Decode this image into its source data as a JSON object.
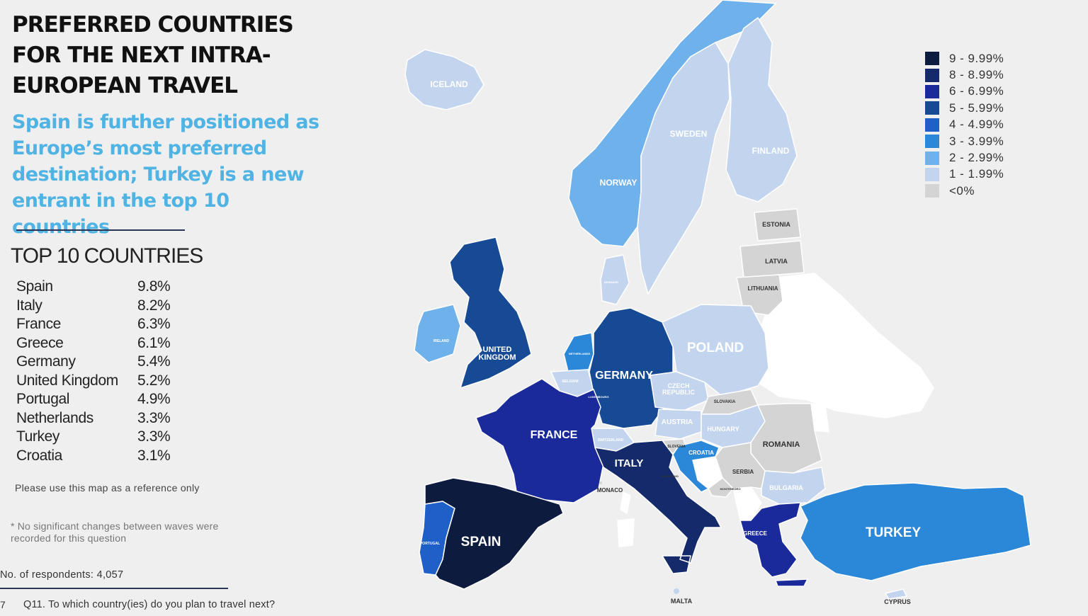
{
  "title": "PREFERRED COUNTRIES FOR THE NEXT INTRA-EUROPEAN TRAVEL",
  "subtitle": "Spain is further positioned as Europe’s most preferred destination; Turkey is a new entrant in the top 10 countries",
  "top10": {
    "heading": "TOP 10 COUNTRIES",
    "rows": [
      {
        "country": "Spain",
        "value": "9.8%"
      },
      {
        "country": "Italy",
        "value": "8.2%"
      },
      {
        "country": "France",
        "value": "6.3%"
      },
      {
        "country": "Greece",
        "value": "6.1%"
      },
      {
        "country": "Germany",
        "value": "5.4%"
      },
      {
        "country": "United Kingdom",
        "value": "5.2%"
      },
      {
        "country": "Portugal",
        "value": "4.9%"
      },
      {
        "country": "Netherlands",
        "value": "3.3%"
      },
      {
        "country": "Turkey",
        "value": "3.3%"
      },
      {
        "country": "Croatia",
        "value": "3.1%"
      }
    ]
  },
  "notes": {
    "reference": "Please use this map as a reference only",
    "changes": "* No significant changes between waves were recorded for this question",
    "respondents": "No. of respondents: 4,057",
    "page_number": "7",
    "question": "Q11. To which country(ies) do you plan to travel next?"
  },
  "legend": [
    {
      "label": "9 - 9.99%",
      "color": "#0d1b3e"
    },
    {
      "label": "8 - 8.99%",
      "color": "#152a6b"
    },
    {
      "label": "6 - 6.99%",
      "color": "#1a2a9a"
    },
    {
      "label": "5 - 5.99%",
      "color": "#164a94"
    },
    {
      "label": "4 - 4.99%",
      "color": "#1f5fc8"
    },
    {
      "label": "3 - 3.99%",
      "color": "#2b87d8"
    },
    {
      "label": "2 - 2.99%",
      "color": "#6fb1ea"
    },
    {
      "label": "1 - 1.99%",
      "color": "#c3d5ee"
    },
    {
      "label": "<0%",
      "color": "#d4d4d4"
    }
  ],
  "map_labels": {
    "iceland": "ICELAND",
    "norway": "NORWAY",
    "sweden": "SWEDEN",
    "finland": "FINLAND",
    "estonia": "ESTONIA",
    "latvia": "LATVIA",
    "lithuania": "LITHUANIA",
    "denmark": "DENMARK",
    "ireland": "IRELAND",
    "uk": "UNITED KINGDOM",
    "netherlands": "NETHERLANDS",
    "belgium": "BELGIUM",
    "luxembourg": "LUXEMBOURG",
    "germany": "GERMANY",
    "poland": "POLAND",
    "czech": "CZECH REPUBLIC",
    "slovakia": "SLOVAKIA",
    "austria": "AUSTRIA",
    "hungary": "HUNGARY",
    "switzerland": "SWITZERLAND",
    "slovenia": "SLOVENIA",
    "croatia": "CROATIA",
    "romania": "ROMANIA",
    "serbia": "SERBIA",
    "montenegro": "MONTENEGRO",
    "bulgaria": "BULGARIA",
    "france": "FRANCE",
    "italy": "ITALY",
    "san_marino": "SAN MARINO",
    "monaco": "MONACO",
    "portugal": "PORTUGAL",
    "spain": "SPAIN",
    "greece": "GREECE",
    "turkey": "TURKEY",
    "malta": "MALTA",
    "cyprus": "CYPRUS"
  },
  "country_colors": {
    "spain": "#0d1b3e",
    "italy": "#152a6b",
    "france": "#1a2a9a",
    "greece": "#1a2a9a",
    "germany": "#164a94",
    "uk": "#164a94",
    "portugal": "#1f5fc8",
    "netherlands": "#2b87d8",
    "turkey": "#2b87d8",
    "croatia": "#2b87d8",
    "norway": "#6fb1ea",
    "ireland": "#6fb1ea",
    "iceland": "#c3d5ee",
    "sweden": "#c3d5ee",
    "finland": "#c3d5ee",
    "denmark": "#c3d5ee",
    "poland": "#c3d5ee",
    "czech": "#c3d5ee",
    "austria": "#c3d5ee",
    "hungary": "#c3d5ee",
    "switzerland": "#c3d5ee",
    "belgium": "#c3d5ee",
    "bulgaria": "#c3d5ee",
    "malta": "#c3d5ee",
    "cyprus": "#c3d5ee",
    "estonia": "#d4d4d4",
    "latvia": "#d4d4d4",
    "lithuania": "#d4d4d4",
    "slovakia": "#d4d4d4",
    "romania": "#d4d4d4",
    "serbia": "#d4d4d4",
    "balkans": "#d4d4d4",
    "slovenia": "#d4d4d4",
    "nonsurvey": "#ffffff"
  }
}
